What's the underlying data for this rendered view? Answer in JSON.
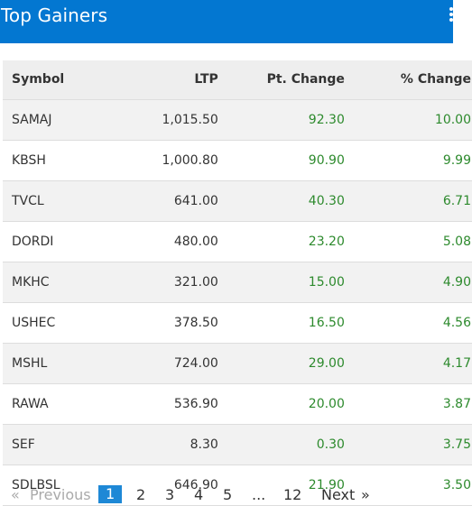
{
  "header": {
    "title": "Top Gainers",
    "menu_icon": "vertical-dots-icon"
  },
  "columns": {
    "symbol": "Symbol",
    "ltp": "LTP",
    "pt_change": "Pt. Change",
    "pct_change": "% Change"
  },
  "rows": [
    {
      "symbol": "SAMAJ",
      "ltp": "1,015.50",
      "pt": "92.30",
      "pct": "10.00"
    },
    {
      "symbol": "KBSH",
      "ltp": "1,000.80",
      "pt": "90.90",
      "pct": "9.99"
    },
    {
      "symbol": "TVCL",
      "ltp": "641.00",
      "pt": "40.30",
      "pct": "6.71"
    },
    {
      "symbol": "DORDI",
      "ltp": "480.00",
      "pt": "23.20",
      "pct": "5.08"
    },
    {
      "symbol": "MKHC",
      "ltp": "321.00",
      "pt": "15.00",
      "pct": "4.90"
    },
    {
      "symbol": "USHEC",
      "ltp": "378.50",
      "pt": "16.50",
      "pct": "4.56"
    },
    {
      "symbol": "MSHL",
      "ltp": "724.00",
      "pt": "29.00",
      "pct": "4.17"
    },
    {
      "symbol": "RAWA",
      "ltp": "536.90",
      "pt": "20.00",
      "pct": "3.87"
    },
    {
      "symbol": "SEF",
      "ltp": "8.30",
      "pt": "0.30",
      "pct": "3.75"
    },
    {
      "symbol": "SDLBSL",
      "ltp": "646.90",
      "pt": "21.90",
      "pct": "3.50"
    }
  ],
  "pagination": {
    "prev_arrow": "«",
    "prev_label": "Previous",
    "pages": [
      "1",
      "2",
      "3",
      "4",
      "5",
      "...",
      "12"
    ],
    "active_page": "1",
    "next_label": "Next",
    "next_arrow": "»"
  },
  "colors": {
    "header_bg": "#0377d1",
    "gain_text": "#2d8a2d",
    "active_page_bg": "#1e88d6"
  }
}
